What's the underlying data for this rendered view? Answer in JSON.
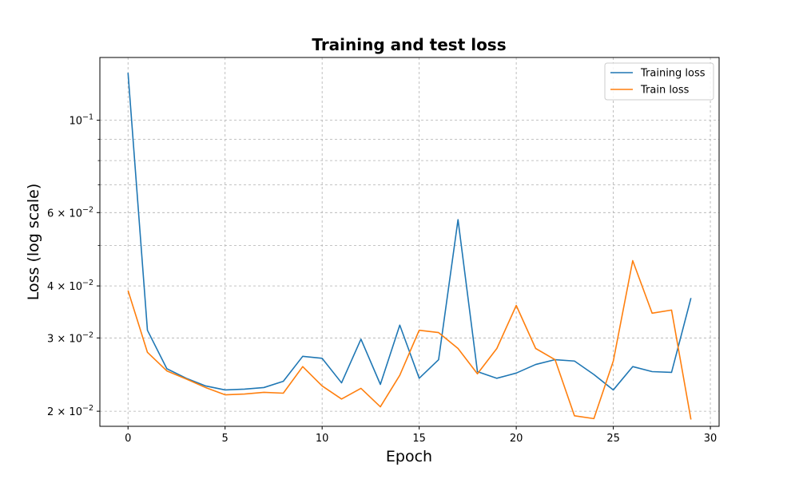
{
  "chart_data": {
    "type": "line",
    "title": "Training and test loss",
    "xlabel": "Epoch",
    "ylabel": "Loss (log scale)",
    "y_scale": "log",
    "grid": true,
    "legend_position": "top-right",
    "xlim": [
      -1.45,
      30.45
    ],
    "ylim": [
      0.0184,
      0.1415
    ],
    "x_ticks": [
      0,
      5,
      10,
      15,
      20,
      25,
      30
    ],
    "x_tick_labels": [
      "0",
      "5",
      "10",
      "15",
      "20",
      "25",
      "30"
    ],
    "y_ticks": [
      0.02,
      0.03,
      0.04,
      0.06,
      0.1
    ],
    "y_tick_labels": [
      {
        "base": "2",
        "mant": "10",
        "exp": "−2"
      },
      {
        "base": "3",
        "mant": "10",
        "exp": "−2"
      },
      {
        "base": "4",
        "mant": "10",
        "exp": "−2"
      },
      {
        "base": "6",
        "mant": "10",
        "exp": "−2"
      },
      {
        "base": "",
        "mant": "10",
        "exp": "−1"
      }
    ],
    "y_minor_grid": [
      0.05,
      0.07,
      0.08,
      0.09
    ],
    "x": [
      0,
      1,
      2,
      3,
      4,
      5,
      6,
      7,
      8,
      9,
      10,
      11,
      12,
      13,
      14,
      15,
      16,
      17,
      18,
      19,
      20,
      21,
      22,
      23,
      24,
      25,
      26,
      27,
      28,
      29
    ],
    "series": [
      {
        "name": "Training loss",
        "color": "#1f77b4",
        "values": [
          0.13,
          0.0313,
          0.0253,
          0.024,
          0.023,
          0.0225,
          0.0226,
          0.0228,
          0.0236,
          0.0271,
          0.0268,
          0.0234,
          0.0298,
          0.0232,
          0.0322,
          0.024,
          0.0266,
          0.0577,
          0.0249,
          0.024,
          0.0247,
          0.0259,
          0.0266,
          0.0264,
          0.0245,
          0.0225,
          0.0256,
          0.0249,
          0.0248,
          0.0374
        ]
      },
      {
        "name": "Train loss",
        "color": "#ff7f0e",
        "values": [
          0.039,
          0.0277,
          0.025,
          0.0239,
          0.0228,
          0.0219,
          0.022,
          0.0222,
          0.0221,
          0.0256,
          0.023,
          0.0214,
          0.0227,
          0.0205,
          0.0244,
          0.0313,
          0.0309,
          0.0283,
          0.0246,
          0.0283,
          0.0359,
          0.0283,
          0.0266,
          0.0195,
          0.0192,
          0.0264,
          0.046,
          0.0344,
          0.035,
          0.0191
        ]
      }
    ]
  }
}
